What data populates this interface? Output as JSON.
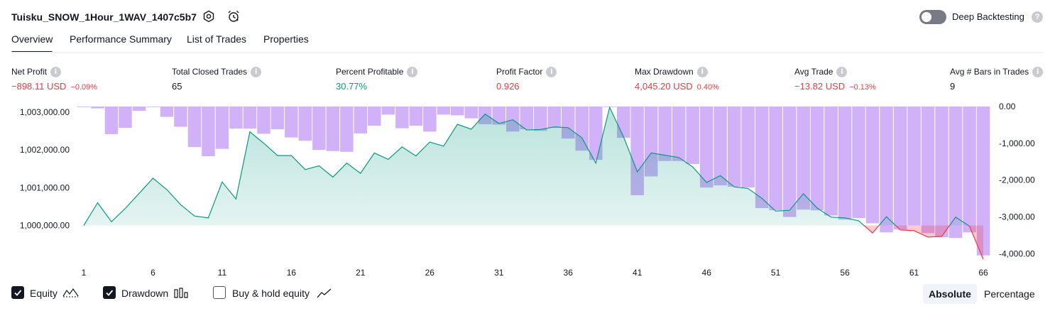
{
  "header": {
    "title": "Tuisku_SNOW_1Hour_1WAV_1407c5b7",
    "deep_backtesting_label": "Deep Backtesting",
    "deep_backtesting_enabled": false,
    "help_glyph": "?"
  },
  "tabs": [
    {
      "label": "Overview",
      "active": true
    },
    {
      "label": "Performance Summary",
      "active": false
    },
    {
      "label": "List of Trades",
      "active": false
    },
    {
      "label": "Properties",
      "active": false
    }
  ],
  "metrics": [
    {
      "label": "Net Profit",
      "value": "−898.11 USD",
      "pct": "−0.09%",
      "value_color": "red"
    },
    {
      "label": "Total Closed Trades",
      "value": "65",
      "pct": "",
      "value_color": "dark"
    },
    {
      "label": "Percent Profitable",
      "value": "30.77%",
      "pct": "",
      "value_color": "green"
    },
    {
      "label": "Profit Factor",
      "value": "0.926",
      "pct": "",
      "value_color": "red"
    },
    {
      "label": "Max Drawdown",
      "value": "4,045.20 USD",
      "pct": "0.40%",
      "value_color": "red"
    },
    {
      "label": "Avg Trade",
      "value": "−13.82 USD",
      "pct": "−0.13%",
      "value_color": "red"
    },
    {
      "label": "Avg # Bars in Trades",
      "value": "9",
      "pct": "",
      "value_color": "dark"
    }
  ],
  "info_glyph": "i",
  "chart_data": {
    "type": "area",
    "x_ticks": [
      "1",
      "6",
      "11",
      "16",
      "21",
      "26",
      "31",
      "36",
      "41",
      "46",
      "51",
      "56",
      "61",
      "66"
    ],
    "left_axis": {
      "ticks": [
        "1,003,000.00",
        "1,002,000.00",
        "1,001,000.00",
        "1,000,000.00"
      ],
      "tick_values": [
        1003000,
        1002000,
        1001000,
        1000000
      ],
      "range": [
        999200,
        1003150
      ]
    },
    "right_axis": {
      "ticks": [
        "0.00",
        "-1,000.00",
        "-2,000.00",
        "-3,000.00",
        "-4,000.00"
      ],
      "tick_values": [
        0,
        -1000,
        -2000,
        -3000,
        -4000
      ],
      "range": [
        -4050,
        0
      ]
    },
    "series": [
      {
        "name": "Equity",
        "color": "#089981",
        "below_initial_color": "#f23645",
        "values": [
          1000000,
          1000600,
          1000100,
          1000450,
          1000850,
          1001250,
          1000950,
          1000550,
          1000250,
          1000200,
          1001150,
          1000700,
          1002480,
          1002180,
          1001850,
          1001850,
          1001480,
          1001580,
          1001280,
          1001650,
          1001380,
          1001920,
          1001750,
          1002080,
          1001840,
          1002210,
          1002100,
          1002680,
          1002550,
          1002950,
          1002700,
          1002800,
          1002530,
          1002540,
          1002610,
          1002590,
          1002320,
          1001650,
          1003130,
          1002350,
          1001420,
          1001920,
          1001860,
          1001800,
          1001550,
          1001140,
          1001320,
          1001020,
          1000980,
          1000720,
          1000380,
          1000400,
          1000840,
          1000460,
          1000220,
          1000200,
          1000120,
          999800,
          1000230,
          999880,
          999860,
          999690,
          999710,
          1000220,
          999980,
          999100
        ]
      },
      {
        "name": "Drawdown",
        "color": "#d1b2f8",
        "values": [
          0,
          -50,
          -750,
          -580,
          -120,
          0,
          -280,
          -550,
          -1100,
          -1350,
          -1150,
          -600,
          -600,
          -740,
          -620,
          -840,
          -930,
          -1180,
          -1210,
          -1230,
          -730,
          -520,
          -220,
          -590,
          -520,
          -680,
          -220,
          -240,
          -320,
          -480,
          -490,
          -680,
          -620,
          -660,
          -580,
          -870,
          -1200,
          -1450,
          0,
          -850,
          -2410,
          -1900,
          -1480,
          -1480,
          -1560,
          -2200,
          -2140,
          -2180,
          -2200,
          -2760,
          -2820,
          -3000,
          -2800,
          -2820,
          -2960,
          -3070,
          -3030,
          -3170,
          -3420,
          -3340,
          -3230,
          -3440,
          -3550,
          -3570,
          -3420,
          -4045
        ]
      },
      {
        "name": "Buy & hold equity",
        "enabled": false,
        "values": []
      }
    ]
  },
  "legend": [
    {
      "label": "Equity",
      "checked": true
    },
    {
      "label": "Drawdown",
      "checked": true
    },
    {
      "label": "Buy & hold equity",
      "checked": false
    }
  ],
  "modes": [
    {
      "label": "Absolute",
      "active": true
    },
    {
      "label": "Percentage",
      "active": false
    }
  ]
}
